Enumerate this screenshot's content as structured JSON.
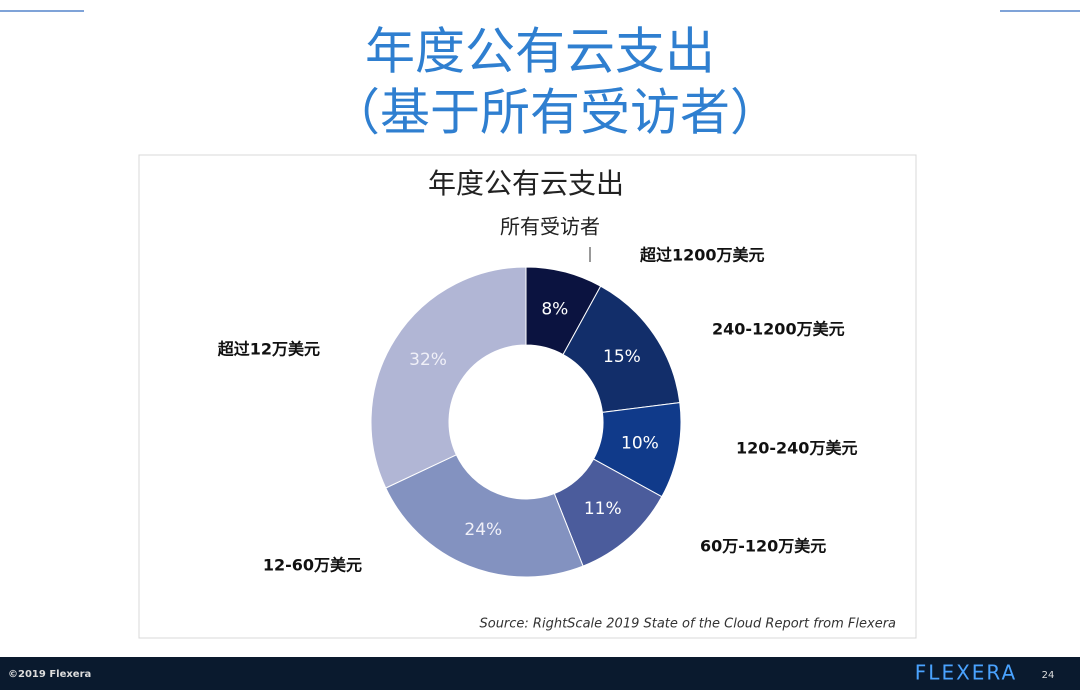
{
  "slide": {
    "title": [
      "年度公有云支出",
      "（基于所有受访者）"
    ]
  },
  "chart_data": {
    "type": "donut",
    "title": "年度公有云支出",
    "subtitle": "所有受访者",
    "categories": [
      "超过1200万美元",
      "240-1200万美元",
      "120-240万美元",
      "60万-120万美元",
      "12-60万美元",
      "超过12万美元"
    ],
    "values": [
      8,
      15,
      10,
      11,
      24,
      32
    ],
    "value_labels": [
      "8%",
      "15%",
      "10%",
      "11%",
      "24%",
      "32%"
    ],
    "colors": [
      "#0b1340",
      "#122e6a",
      "#103a8a",
      "#4b5c9c",
      "#8392c0",
      "#b1b6d5"
    ],
    "source": "Source: RightScale 2019 State of the Cloud Report from Flexera"
  },
  "footer": {
    "copyright": "©2019 Flexera",
    "logo": "FLEXERA",
    "page": "24"
  }
}
